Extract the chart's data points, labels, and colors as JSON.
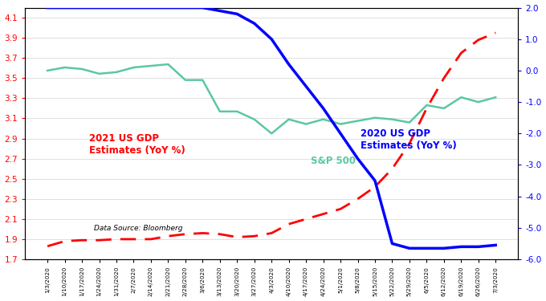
{
  "background_color": "#ffffff",
  "sp500_color": "#5bc8a0",
  "x_labels": [
    "1/3/2020",
    "1/10/2020",
    "1/17/2020",
    "1/24/2020",
    "1/31/2020",
    "2/7/2020",
    "2/14/2020",
    "2/21/2020",
    "2/28/2020",
    "3/6/2020",
    "3/13/2020",
    "3/20/2020",
    "3/27/2020",
    "4/3/2020",
    "4/10/2020",
    "4/17/2020",
    "4/24/2020",
    "5/1/2020",
    "5/8/2020",
    "5/15/2020",
    "5/22/2020",
    "5/29/2020",
    "6/5/2020",
    "6/12/2020",
    "6/19/2020",
    "6/26/2020",
    "7/3/2020"
  ],
  "gdp2021": [
    1.83,
    1.88,
    1.89,
    1.89,
    1.9,
    1.9,
    1.9,
    1.93,
    1.95,
    1.96,
    1.95,
    1.92,
    1.93,
    1.96,
    2.05,
    2.1,
    2.15,
    2.2,
    2.3,
    2.42,
    2.6,
    2.85,
    3.2,
    3.5,
    3.75,
    3.88,
    3.95
  ],
  "gdp2020": [
    2.0,
    2.0,
    2.0,
    2.0,
    2.0,
    2.0,
    2.0,
    2.0,
    2.0,
    2.0,
    1.9,
    1.8,
    1.5,
    1.0,
    0.2,
    -0.5,
    -1.2,
    -2.0,
    -2.8,
    -3.5,
    -5.5,
    -5.65,
    -5.65,
    -5.65,
    -5.6,
    -5.6,
    -5.55
  ],
  "sp500": [
    0.0,
    0.1,
    0.05,
    -0.1,
    -0.05,
    0.1,
    0.15,
    0.2,
    -0.3,
    -0.3,
    -1.3,
    -1.3,
    -1.55,
    -2.0,
    -1.55,
    -1.7,
    -1.55,
    -1.7,
    -1.6,
    -1.5,
    -1.55,
    -1.65,
    -1.1,
    -1.2,
    -0.85,
    -1.0,
    -0.85
  ],
  "gdp2021_label": "2021 US GDP\nEstimates (YoY %)",
  "gdp2020_label": "2020 US GDP\nEstimates (YoY %)",
  "sp500_label": "S&P 500",
  "datasource": "Data Source: Bloomberg",
  "left_ylim": [
    1.7,
    4.2
  ],
  "left_yticks": [
    1.7,
    1.9,
    2.1,
    2.3,
    2.5,
    2.7,
    2.9,
    3.1,
    3.3,
    3.5,
    3.7,
    3.9,
    4.1
  ],
  "right_ylim": [
    -6.0,
    2.0
  ],
  "right_yticks": [
    -6.0,
    -5.0,
    -4.0,
    -3.0,
    -2.0,
    -1.0,
    0.0,
    1.0,
    2.0
  ]
}
